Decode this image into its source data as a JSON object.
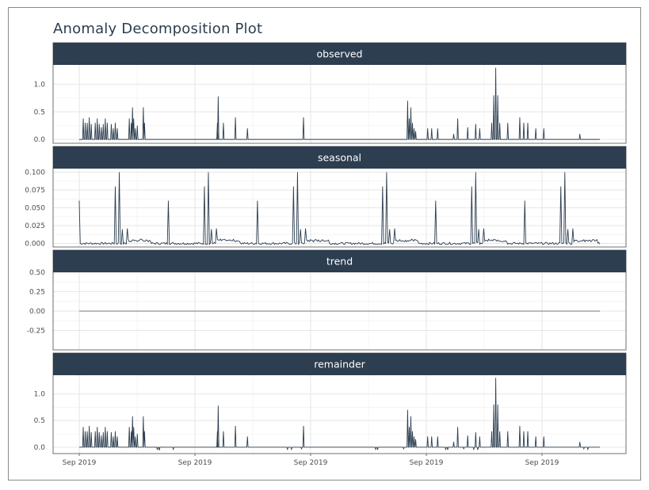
{
  "title": "Anomaly Decomposition Plot",
  "colors": {
    "strip": "#2c3e50",
    "line": "#2c3e50",
    "grid": "#e6e6e6",
    "panel_border": "#4d4d4d"
  },
  "chart_data": {
    "type": "line",
    "title": "Anomaly Decomposition Plot",
    "facets": "vertical, one panel per series, shared x axis",
    "grid": true,
    "x_tick_labels": [
      "Sep 2019",
      "Sep 2019",
      "Sep 2019",
      "Sep 2019",
      "Sep 2019"
    ],
    "x_range_note": "five identical 'Sep 2019' tick labels; daily observations",
    "panels": [
      {
        "name": "observed",
        "yticks": [
          0.0,
          0.5,
          1.0
        ],
        "ytick_labels": [
          "0.0",
          "0.5",
          "1.0"
        ],
        "ylim": [
          -0.07,
          1.35
        ],
        "spikes": [
          [
            0.01,
            0.38
          ],
          [
            0.015,
            0.3
          ],
          [
            0.02,
            0.3
          ],
          [
            0.025,
            0.4
          ],
          [
            0.03,
            0.28
          ],
          [
            0.04,
            0.3
          ],
          [
            0.045,
            0.38
          ],
          [
            0.05,
            0.28
          ],
          [
            0.055,
            0.22
          ],
          [
            0.06,
            0.28
          ],
          [
            0.065,
            0.38
          ],
          [
            0.07,
            0.3
          ],
          [
            0.08,
            0.28
          ],
          [
            0.085,
            0.2
          ],
          [
            0.09,
            0.3
          ],
          [
            0.095,
            0.2
          ],
          [
            0.125,
            0.38
          ],
          [
            0.13,
            0.3
          ],
          [
            0.133,
            0.58
          ],
          [
            0.136,
            0.38
          ],
          [
            0.14,
            0.2
          ],
          [
            0.145,
            0.25
          ],
          [
            0.16,
            0.58
          ],
          [
            0.163,
            0.3
          ],
          [
            0.345,
            0.3
          ],
          [
            0.347,
            0.78
          ],
          [
            0.36,
            0.3
          ],
          [
            0.39,
            0.4
          ],
          [
            0.42,
            0.2
          ],
          [
            0.56,
            0.4
          ],
          [
            0.82,
            0.7
          ],
          [
            0.824,
            0.38
          ],
          [
            0.828,
            0.58
          ],
          [
            0.832,
            0.3
          ],
          [
            0.836,
            0.2
          ],
          [
            0.84,
            0.15
          ],
          [
            0.87,
            0.2
          ],
          [
            0.88,
            0.2
          ],
          [
            0.895,
            0.2
          ],
          [
            0.935,
            0.1
          ],
          [
            0.945,
            0.38
          ],
          [
            0.97,
            0.22
          ],
          [
            0.99,
            0.28
          ],
          [
            1.0,
            0.2
          ],
          [
            1.03,
            0.3
          ],
          [
            1.035,
            0.8
          ],
          [
            1.04,
            1.3
          ],
          [
            1.045,
            0.8
          ],
          [
            1.05,
            0.3
          ],
          [
            1.07,
            0.3
          ],
          [
            1.1,
            0.4
          ],
          [
            1.11,
            0.3
          ],
          [
            1.12,
            0.3
          ],
          [
            1.14,
            0.2
          ],
          [
            1.16,
            0.2
          ],
          [
            1.25,
            0.1
          ]
        ]
      },
      {
        "name": "seasonal",
        "yticks": [
          0.0,
          0.025,
          0.05,
          0.075,
          0.1
        ],
        "ytick_labels": [
          "0.000",
          "0.025",
          "0.050",
          "0.075",
          "0.100"
        ],
        "ylim": [
          -0.005,
          0.105
        ],
        "period_fraction": 0.2225,
        "pattern_spikes": [
          [
            0.0,
            0.06
          ],
          [
            0.09,
            0.08
          ],
          [
            0.1,
            0.1
          ],
          [
            0.107,
            0.02
          ],
          [
            0.12,
            0.021
          ]
        ]
      },
      {
        "name": "trend",
        "yticks": [
          -0.25,
          0.0,
          0.25,
          0.5
        ],
        "ytick_labels": [
          "-0.25",
          "0.00",
          "0.25",
          "0.50"
        ],
        "ylim": [
          -0.5,
          0.5
        ],
        "constant_value": 0.0
      },
      {
        "name": "remainder",
        "yticks": [
          0.0,
          0.5,
          1.0
        ],
        "ytick_labels": [
          "0.0",
          "0.5",
          "1.0"
        ],
        "ylim": [
          -0.12,
          1.35
        ],
        "spikes_same_as": "observed",
        "negative_dips": [
          [
            0.195,
            -0.05
          ],
          [
            0.2,
            -0.06
          ],
          [
            0.235,
            -0.04
          ],
          [
            0.52,
            -0.04
          ],
          [
            0.53,
            -0.04
          ],
          [
            0.555,
            -0.03
          ],
          [
            0.74,
            -0.04
          ],
          [
            0.745,
            -0.05
          ],
          [
            0.81,
            -0.03
          ],
          [
            0.915,
            -0.04
          ],
          [
            0.92,
            -0.05
          ],
          [
            0.96,
            -0.03
          ],
          [
            0.985,
            -0.04
          ],
          [
            0.995,
            -0.05
          ],
          [
            1.26,
            -0.03
          ],
          [
            1.27,
            -0.04
          ]
        ]
      }
    ]
  }
}
